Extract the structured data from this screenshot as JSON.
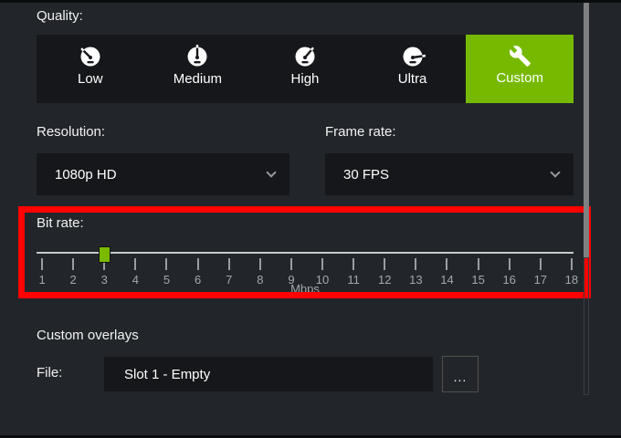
{
  "quality": {
    "label": "Quality:",
    "options": [
      {
        "label": "Low",
        "icon": "gauge-low-icon",
        "selected": false
      },
      {
        "label": "Medium",
        "icon": "gauge-medium-icon",
        "selected": false
      },
      {
        "label": "High",
        "icon": "gauge-high-icon",
        "selected": false
      },
      {
        "label": "Ultra",
        "icon": "gauge-ultra-icon",
        "selected": false
      },
      {
        "label": "Custom",
        "icon": "wrench-icon",
        "selected": true
      }
    ]
  },
  "resolution": {
    "label": "Resolution:",
    "value": "1080p HD"
  },
  "frame_rate": {
    "label": "Frame rate:",
    "value": "30 FPS"
  },
  "bit_rate": {
    "label": "Bit rate:",
    "unit": "Mbps",
    "value": 3,
    "min": 1,
    "max": 18,
    "tick_labels": [
      "1",
      "2",
      "3",
      "4",
      "5",
      "6",
      "7",
      "8",
      "9",
      "10",
      "11",
      "12",
      "13",
      "14",
      "15",
      "16",
      "17",
      "18"
    ]
  },
  "custom_overlays": {
    "section_label": "Custom overlays",
    "file_label": "File:",
    "file_value": "Slot 1 - Empty",
    "browse_label": "..."
  },
  "annotation": {
    "shape": "rectangle",
    "color": "#ff0000",
    "highlights": "bit-rate-slider"
  },
  "colors": {
    "background": "#22262b",
    "panel_dark": "#15171a",
    "accent_green": "#76b900",
    "annotation_red": "#fe0100",
    "text_primary": "#ffffff",
    "text_muted": "#a4a7aa",
    "scrollbar_thumb": "#7e8082"
  }
}
